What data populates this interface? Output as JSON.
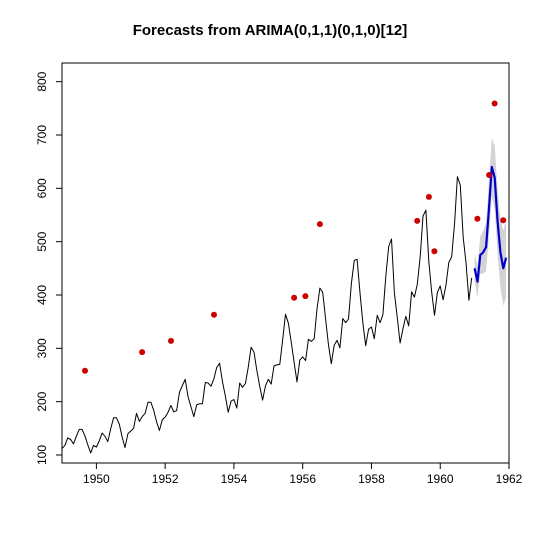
{
  "chart_data": {
    "type": "line",
    "title": "Forecasts from ARIMA(0,1,1)(0,1,0)[12]",
    "xlabel": "",
    "ylabel": "",
    "xlim": [
      1949,
      1962
    ],
    "ylim": [
      85,
      835
    ],
    "x_ticks": [
      1950,
      1952,
      1954,
      1956,
      1958,
      1960,
      1962
    ],
    "y_ticks": [
      100,
      200,
      300,
      400,
      500,
      600,
      700,
      800
    ],
    "grid": false,
    "legend": "none",
    "series": [
      {
        "role": "historical",
        "color": "#000000",
        "start": 1949.0,
        "step": 0.0833333,
        "values": [
          112,
          118,
          132,
          129,
          121,
          135,
          148,
          148,
          136,
          119,
          104,
          118,
          115,
          126,
          141,
          135,
          125,
          149,
          170,
          170,
          158,
          133,
          114,
          140,
          145,
          150,
          178,
          163,
          172,
          178,
          199,
          199,
          184,
          162,
          146,
          166,
          171,
          180,
          193,
          181,
          183,
          218,
          230,
          242,
          209,
          191,
          172,
          194,
          196,
          196,
          236,
          235,
          229,
          243,
          264,
          272,
          237,
          211,
          180,
          201,
          204,
          188,
          235,
          227,
          234,
          264,
          302,
          293,
          259,
          229,
          203,
          229,
          242,
          233,
          267,
          269,
          270,
          315,
          364,
          347,
          312,
          274,
          237,
          278,
          284,
          277,
          317,
          313,
          318,
          374,
          413,
          405,
          355,
          306,
          271,
          306,
          315,
          301,
          356,
          348,
          355,
          422,
          465,
          467,
          404,
          347,
          305,
          336,
          340,
          318,
          362,
          348,
          363,
          435,
          491,
          505,
          404,
          359,
          310,
          337,
          360,
          342,
          406,
          396,
          420,
          472,
          548,
          559,
          463,
          407,
          362,
          405,
          417,
          391,
          419,
          461,
          472,
          535,
          622,
          606,
          508,
          461,
          390,
          432
        ]
      },
      {
        "role": "forecast",
        "color": "#0000cc",
        "start": 1961.0,
        "step": 0.0833333,
        "values": [
          450,
          425,
          475,
          480,
          490,
          560,
          640,
          620,
          540,
          480,
          450,
          470
        ],
        "interval_color": "#c8c8c8",
        "interval_lower": [
          425,
          395,
          440,
          440,
          445,
          510,
          585,
          560,
          480,
          415,
          380,
          395
        ],
        "interval_upper": [
          475,
          455,
          510,
          520,
          535,
          610,
          695,
          680,
          600,
          545,
          520,
          545
        ]
      }
    ],
    "outlier_points": {
      "color": "#cc0000",
      "points": [
        {
          "x": 1949.67,
          "y": 258
        },
        {
          "x": 1951.33,
          "y": 293
        },
        {
          "x": 1952.17,
          "y": 314
        },
        {
          "x": 1953.42,
          "y": 363
        },
        {
          "x": 1955.75,
          "y": 395
        },
        {
          "x": 1956.08,
          "y": 398
        },
        {
          "x": 1956.5,
          "y": 533
        },
        {
          "x": 1959.33,
          "y": 539
        },
        {
          "x": 1959.67,
          "y": 584
        },
        {
          "x": 1959.83,
          "y": 482
        },
        {
          "x": 1961.08,
          "y": 543
        },
        {
          "x": 1961.42,
          "y": 625
        },
        {
          "x": 1961.58,
          "y": 759
        },
        {
          "x": 1961.83,
          "y": 540
        }
      ]
    }
  }
}
